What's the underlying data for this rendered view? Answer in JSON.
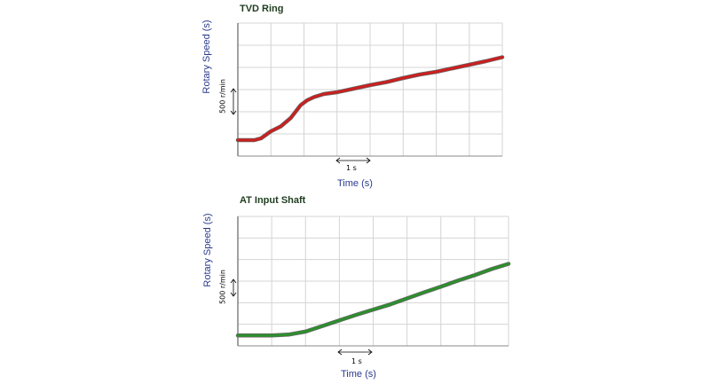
{
  "chart_data": [
    {
      "type": "line",
      "title": "TVD Ring",
      "xlabel": "Time (s)",
      "ylabel": "Rotary Speed (s)",
      "x_scale_label": "1 s",
      "y_scale_label": "500 r/min",
      "grid": true,
      "xlim": [
        0,
        8
      ],
      "ylim": [
        0,
        3000
      ],
      "series": [
        {
          "color": "#cc1f1f",
          "x": [
            0,
            0.5,
            0.7,
            1.0,
            1.3,
            1.6,
            1.9,
            2.1,
            2.3,
            2.6,
            3.0,
            3.5,
            4.0,
            4.5,
            5.0,
            5.5,
            6.0,
            6.5,
            7.0,
            7.5,
            8.0
          ],
          "y": [
            360,
            360,
            400,
            560,
            670,
            860,
            1150,
            1260,
            1330,
            1400,
            1440,
            1520,
            1600,
            1670,
            1760,
            1840,
            1900,
            1980,
            2060,
            2140,
            2230
          ]
        }
      ]
    },
    {
      "type": "line",
      "title": "AT Input Shaft",
      "xlabel": "Time (s)",
      "ylabel": "Rotary Speed (s)",
      "x_scale_label": "1 s",
      "y_scale_label": "500 r/min",
      "grid": true,
      "xlim": [
        0,
        8
      ],
      "ylim": [
        0,
        3000
      ],
      "series": [
        {
          "color": "#2c8f2c",
          "x": [
            0,
            1.0,
            1.5,
            2.0,
            2.5,
            3.0,
            3.5,
            4.0,
            4.5,
            5.0,
            5.5,
            6.0,
            6.5,
            7.0,
            7.5,
            8.0
          ],
          "y": [
            240,
            240,
            260,
            330,
            460,
            590,
            720,
            840,
            960,
            1100,
            1240,
            1370,
            1510,
            1640,
            1780,
            1900
          ]
        }
      ]
    }
  ]
}
